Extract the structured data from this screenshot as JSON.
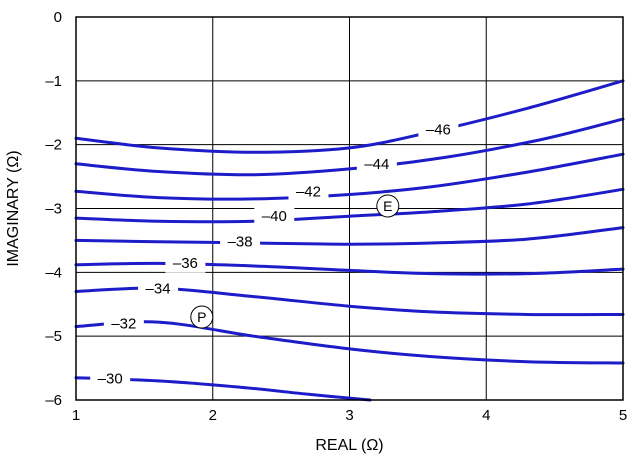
{
  "chart_data": {
    "type": "line",
    "title": "",
    "xlabel": "REAL (Ω)",
    "ylabel": "IMAGINARY (Ω)",
    "xlim": [
      1,
      5
    ],
    "ylim": [
      -6,
      0
    ],
    "x_ticks": [
      "1",
      "2",
      "3",
      "4",
      "5"
    ],
    "y_ticks": [
      "0",
      "–1",
      "–2",
      "–3",
      "–4",
      "–5",
      "–6"
    ],
    "grid": true,
    "line_color": "#1c1cc8",
    "series": [
      {
        "name": "–46",
        "label_at": [
          3.65,
          -1.76
        ],
        "points": [
          [
            1,
            -1.9
          ],
          [
            1.6,
            -2.05
          ],
          [
            2.3,
            -2.12
          ],
          [
            3.0,
            -2.05
          ],
          [
            3.6,
            -1.8
          ],
          [
            4.3,
            -1.43
          ],
          [
            5,
            -1.0
          ]
        ]
      },
      {
        "name": "–44",
        "label_at": [
          3.2,
          -2.3
        ],
        "points": [
          [
            1,
            -2.3
          ],
          [
            1.6,
            -2.42
          ],
          [
            2.3,
            -2.47
          ],
          [
            3.0,
            -2.38
          ],
          [
            3.7,
            -2.2
          ],
          [
            4.4,
            -1.92
          ],
          [
            5,
            -1.6
          ]
        ]
      },
      {
        "name": "–42",
        "label_at": [
          2.7,
          -2.73
        ],
        "points": [
          [
            1,
            -2.73
          ],
          [
            1.6,
            -2.83
          ],
          [
            2.3,
            -2.85
          ],
          [
            3.0,
            -2.78
          ],
          [
            3.6,
            -2.66
          ],
          [
            4.3,
            -2.43
          ],
          [
            5,
            -2.15
          ]
        ]
      },
      {
        "name": "–40",
        "label_at": [
          2.45,
          -3.12
        ],
        "points": [
          [
            1,
            -3.15
          ],
          [
            1.6,
            -3.2
          ],
          [
            2.3,
            -3.2
          ],
          [
            3.0,
            -3.12
          ],
          [
            3.6,
            -3.05
          ],
          [
            4.3,
            -2.93
          ],
          [
            5,
            -2.7
          ]
        ]
      },
      {
        "name": "–38",
        "label_at": [
          2.2,
          -3.52
        ],
        "points": [
          [
            1,
            -3.5
          ],
          [
            1.6,
            -3.52
          ],
          [
            2.3,
            -3.54
          ],
          [
            3.0,
            -3.56
          ],
          [
            3.6,
            -3.54
          ],
          [
            4.3,
            -3.48
          ],
          [
            5,
            -3.3
          ]
        ]
      },
      {
        "name": "–36",
        "label_at": [
          1.8,
          -3.85
        ],
        "points": [
          [
            1,
            -3.88
          ],
          [
            1.6,
            -3.86
          ],
          [
            2.3,
            -3.9
          ],
          [
            3.0,
            -3.97
          ],
          [
            3.6,
            -4.02
          ],
          [
            4.3,
            -4.02
          ],
          [
            5,
            -3.95
          ]
        ]
      },
      {
        "name": "–34",
        "label_at": [
          1.6,
          -4.25
        ],
        "points": [
          [
            1,
            -4.3
          ],
          [
            1.6,
            -4.25
          ],
          [
            2.3,
            -4.38
          ],
          [
            3.0,
            -4.53
          ],
          [
            3.6,
            -4.62
          ],
          [
            4.3,
            -4.66
          ],
          [
            5,
            -4.66
          ]
        ]
      },
      {
        "name": "–32",
        "label_at": [
          1.35,
          -4.8
        ],
        "points": [
          [
            1,
            -4.85
          ],
          [
            1.6,
            -4.78
          ],
          [
            2.3,
            -5.0
          ],
          [
            3.0,
            -5.2
          ],
          [
            3.6,
            -5.32
          ],
          [
            4.3,
            -5.4
          ],
          [
            5,
            -5.42
          ]
        ]
      },
      {
        "name": "–30",
        "label_at": [
          1.25,
          -5.66
        ],
        "points": [
          [
            1,
            -5.65
          ],
          [
            1.6,
            -5.7
          ],
          [
            2.2,
            -5.8
          ],
          [
            2.7,
            -5.91
          ],
          [
            3.15,
            -6.0
          ]
        ]
      }
    ],
    "markers": [
      {
        "label": "E",
        "x": 3.28,
        "y": -2.96
      },
      {
        "label": "P",
        "x": 1.92,
        "y": -4.7
      }
    ]
  }
}
